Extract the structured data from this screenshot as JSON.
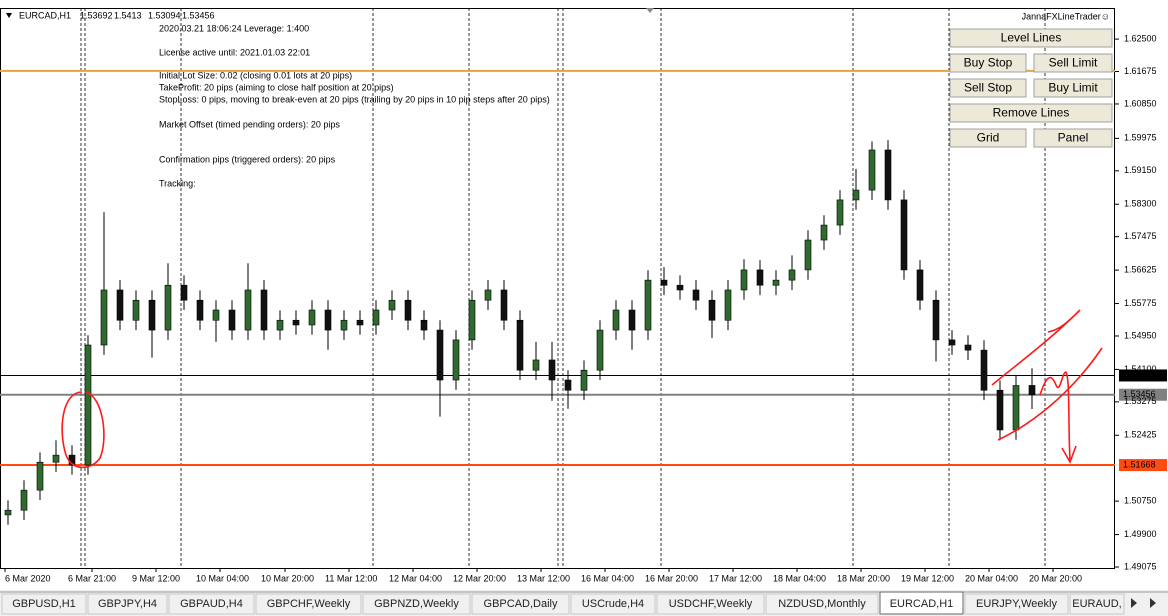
{
  "window": {
    "symbol_title": "EURCAD,H1",
    "info_lines": [
      "2020.03.21 18:06:24   Leverage: 1:400",
      "License active until: 2021.01.03 22:01",
      "Initial Lot Size: 0.02  (closing 0.01 lots at 20 pips)",
      "TakeProfit: 20 pips  (aiming to close half position at 20 pips)",
      "StopLoss: 0 pips, moving to break-even at 20 pips  (trailing by 20 pips in 10 pip steps after 20 pips)",
      "Market Offset (timed pending orders): 20 pips",
      "Confirmation pips (triggered orders): 20 pips",
      "Tracking:"
    ],
    "panel": {
      "title": "JannaFXLineTrader☺",
      "buttons": [
        "Level Lines",
        "Buy Stop",
        "Sell Limit",
        "Sell Stop",
        "Buy Limit",
        "Remove Lines",
        "Grid",
        "Panel"
      ]
    },
    "tabs": [
      "GBPUSD,H1",
      "GBPJPY,H4",
      "GBPAUD,H4",
      "GBPCHF,Weekly",
      "GBPNZD,Weekly",
      "GBPCAD,Daily",
      "USCrude,H4",
      "USDCHF,Weekly",
      "NZDUSD,Monthly",
      "EURCAD,H1",
      "EURJPY,Weekly",
      "EURAUD,"
    ],
    "active_tab": 9
  },
  "chart_data": {
    "type": "candlestick",
    "bull_color": "#2f6b2f",
    "bear_color": "#111111",
    "ylim": [
      1.4905,
      1.6329
    ],
    "yticks": [
      {
        "value": 1.625,
        "label": "1.62500"
      },
      {
        "value": 1.61675,
        "label": "1.61675"
      },
      {
        "value": 1.6085,
        "label": "1.60850"
      },
      {
        "value": 1.59975,
        "label": "1.59975"
      },
      {
        "value": 1.5915,
        "label": "1.59150"
      },
      {
        "value": 1.583,
        "label": "1.58300"
      },
      {
        "value": 1.57475,
        "label": "1.57475"
      },
      {
        "value": 1.56625,
        "label": "1.56625"
      },
      {
        "value": 1.55775,
        "label": "1.55775"
      },
      {
        "value": 1.5495,
        "label": "1.54950"
      },
      {
        "value": 1.541,
        "label": "1.54100"
      },
      {
        "value": 1.53275,
        "label": "1.53275"
      },
      {
        "value": 1.52425,
        "label": "1.52425"
      },
      {
        "value": 1.5075,
        "label": "1.50750"
      },
      {
        "value": 1.499,
        "label": "1.49900"
      },
      {
        "value": 1.49075,
        "label": "1.49075"
      }
    ],
    "x_labels": [
      "6 Mar 2020",
      "6 Mar 21:00",
      "9 Mar 12:00",
      "10 Mar 04:00",
      "10 Mar 20:00",
      "11 Mar 12:00",
      "12 Mar 04:00",
      "12 Mar 20:00",
      "13 Mar 12:00",
      "16 Mar 04:00",
      "16 Mar 20:00",
      "17 Mar 12:00",
      "18 Mar 04:00",
      "18 Mar 20:00",
      "19 Mar 12:00",
      "20 Mar 04:00",
      "20 Mar 20:00"
    ],
    "levels": [
      {
        "value": 1.6169,
        "color": "#e8a33a",
        "show_label": false
      },
      {
        "value": 1.53946,
        "color": "#000000",
        "show_label": true
      },
      {
        "value": 1.53456,
        "color": "#808080",
        "show_label": true
      },
      {
        "value": 1.51668,
        "color": "#ff4a12",
        "show_label": true
      }
    ],
    "candles": [
      [
        1.504,
        1.5077,
        1.5015,
        1.5052
      ],
      [
        1.5052,
        1.5128,
        1.5027,
        1.5103
      ],
      [
        1.5103,
        1.5199,
        1.5078,
        1.5174
      ],
      [
        1.5174,
        1.523,
        1.5149,
        1.5192
      ],
      [
        1.5192,
        1.5217,
        1.5142,
        1.5167
      ],
      [
        1.5167,
        1.5497,
        1.5142,
        1.5472
      ],
      [
        1.5472,
        1.581,
        1.5447,
        1.5612
      ],
      [
        1.5612,
        1.5637,
        1.551,
        1.5535
      ],
      [
        1.5535,
        1.5611,
        1.551,
        1.5586
      ],
      [
        1.5586,
        1.5611,
        1.544,
        1.551
      ],
      [
        1.551,
        1.568,
        1.5485,
        1.5624
      ],
      [
        1.5624,
        1.5649,
        1.5561,
        1.5586
      ],
      [
        1.5586,
        1.5611,
        1.551,
        1.5535
      ],
      [
        1.5535,
        1.5586,
        1.548,
        1.5561
      ],
      [
        1.5561,
        1.5586,
        1.5485,
        1.551
      ],
      [
        1.551,
        1.568,
        1.5485,
        1.5612
      ],
      [
        1.5612,
        1.5637,
        1.5485,
        1.551
      ],
      [
        1.551,
        1.556,
        1.5485,
        1.5535
      ],
      [
        1.5535,
        1.556,
        1.5498,
        1.5523
      ],
      [
        1.5523,
        1.5586,
        1.5498,
        1.5561
      ],
      [
        1.5561,
        1.5586,
        1.546,
        1.551
      ],
      [
        1.551,
        1.556,
        1.5485,
        1.5535
      ],
      [
        1.5535,
        1.556,
        1.5498,
        1.5523
      ],
      [
        1.5523,
        1.5586,
        1.5498,
        1.5561
      ],
      [
        1.5561,
        1.5611,
        1.5536,
        1.5586
      ],
      [
        1.5586,
        1.5611,
        1.551,
        1.5535
      ],
      [
        1.5535,
        1.556,
        1.5485,
        1.551
      ],
      [
        1.551,
        1.5535,
        1.529,
        1.5383
      ],
      [
        1.5383,
        1.551,
        1.5358,
        1.5485
      ],
      [
        1.5485,
        1.5611,
        1.546,
        1.5586
      ],
      [
        1.5586,
        1.5637,
        1.5561,
        1.5612
      ],
      [
        1.5612,
        1.5637,
        1.551,
        1.5535
      ],
      [
        1.5535,
        1.556,
        1.5383,
        1.5408
      ],
      [
        1.5408,
        1.548,
        1.5383,
        1.5434
      ],
      [
        1.5434,
        1.548,
        1.533,
        1.5383
      ],
      [
        1.5383,
        1.5408,
        1.531,
        1.5357
      ],
      [
        1.5357,
        1.5433,
        1.5332,
        1.5408
      ],
      [
        1.5408,
        1.5535,
        1.5383,
        1.551
      ],
      [
        1.551,
        1.5586,
        1.5485,
        1.5561
      ],
      [
        1.5561,
        1.5586,
        1.546,
        1.551
      ],
      [
        1.551,
        1.5662,
        1.5485,
        1.5637
      ],
      [
        1.5637,
        1.567,
        1.5599,
        1.5624
      ],
      [
        1.5624,
        1.5649,
        1.5587,
        1.5612
      ],
      [
        1.5612,
        1.5637,
        1.5561,
        1.5586
      ],
      [
        1.5586,
        1.5611,
        1.549,
        1.5535
      ],
      [
        1.5535,
        1.5637,
        1.551,
        1.5612
      ],
      [
        1.5612,
        1.569,
        1.5587,
        1.5663
      ],
      [
        1.5663,
        1.5688,
        1.5599,
        1.5624
      ],
      [
        1.5624,
        1.5662,
        1.5599,
        1.5637
      ],
      [
        1.5637,
        1.57,
        1.5612,
        1.5663
      ],
      [
        1.5663,
        1.5764,
        1.5638,
        1.5739
      ],
      [
        1.5739,
        1.5802,
        1.5714,
        1.5777
      ],
      [
        1.5777,
        1.5866,
        1.5752,
        1.5841
      ],
      [
        1.5841,
        1.592,
        1.5816,
        1.5866
      ],
      [
        1.5866,
        1.599,
        1.5841,
        1.5968
      ],
      [
        1.5968,
        1.5993,
        1.5816,
        1.5841
      ],
      [
        1.5841,
        1.5866,
        1.5638,
        1.5663
      ],
      [
        1.5663,
        1.5688,
        1.5561,
        1.5586
      ],
      [
        1.5586,
        1.5611,
        1.543,
        1.5485
      ],
      [
        1.5485,
        1.551,
        1.5447,
        1.5472
      ],
      [
        1.5472,
        1.5497,
        1.5434,
        1.5459
      ],
      [
        1.5459,
        1.5484,
        1.5332,
        1.5357
      ],
      [
        1.5357,
        1.5382,
        1.523,
        1.5256
      ],
      [
        1.5256,
        1.5394,
        1.5231,
        1.5369
      ],
      [
        1.53692,
        1.5413,
        1.53094,
        1.53456
      ]
    ]
  }
}
